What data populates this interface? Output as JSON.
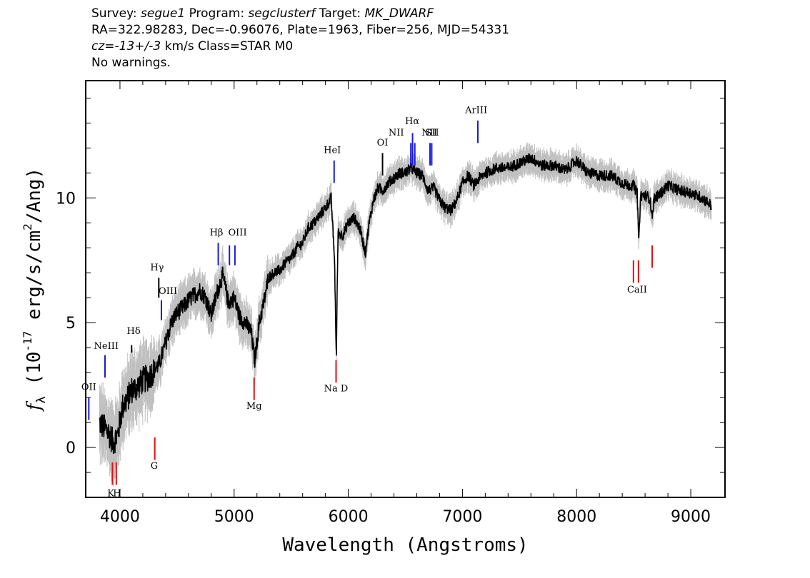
{
  "header": {
    "line1": {
      "p1": "Survey: ",
      "v1": "segue1",
      "p2": " Program: ",
      "v2": "segclusterf",
      "p3": " Target: ",
      "v3": "MK_DWARF"
    },
    "line2": "RA=322.98283, Dec=-0.96076, Plate=1963, Fiber=256, MJD=54331",
    "line3": {
      "v1": "cz=-13+/-3",
      "p1": " km/s Class=STAR M0"
    },
    "line4": "No warnings."
  },
  "chart_data": {
    "type": "line",
    "xlabel": "Wavelength (Angstroms)",
    "ylabel_main": "f",
    "ylabel_sub": "λ",
    "ylabel_rest": " (10",
    "ylabel_exp": "-17",
    "ylabel_tail": " erg/s/cm",
    "ylabel_exp2": "2",
    "ylabel_end": "/Ang)",
    "xlim": [
      3700,
      9300
    ],
    "ylim": [
      -2,
      14.7
    ],
    "x_ticks": [
      4000,
      5000,
      6000,
      7000,
      8000,
      9000
    ],
    "x_tick_labels": [
      "4000",
      "5000",
      "6000",
      "7000",
      "8000",
      "9000"
    ],
    "y_ticks": [
      0,
      5,
      10
    ],
    "y_tick_labels": [
      "0",
      "5",
      "10"
    ],
    "series": [
      {
        "color": "#000000",
        "x": [
          3820,
          3860,
          3900,
          3940,
          3980,
          4020,
          4060,
          4100,
          4150,
          4200,
          4250,
          4300,
          4350,
          4400,
          4450,
          4500,
          4550,
          4600,
          4650,
          4700,
          4750,
          4800,
          4850,
          4900,
          4950,
          5000,
          5050,
          5100,
          5150,
          5180,
          5220,
          5260,
          5300,
          5350,
          5400,
          5450,
          5500,
          5550,
          5600,
          5650,
          5700,
          5750,
          5800,
          5850,
          5880,
          5895,
          5910,
          5950,
          6000,
          6050,
          6100,
          6150,
          6180,
          6220,
          6260,
          6300,
          6350,
          6400,
          6450,
          6500,
          6550,
          6600,
          6650,
          6700,
          6750,
          6800,
          6850,
          6900,
          6950,
          7000,
          7050,
          7100,
          7150,
          7200,
          7300,
          7400,
          7500,
          7600,
          7700,
          7800,
          7900,
          8000,
          8100,
          8200,
          8300,
          8400,
          8450,
          8500,
          8530,
          8545,
          8560,
          8600,
          8640,
          8662,
          8680,
          8720,
          8800,
          8900,
          9000,
          9100,
          9180
        ],
        "y": [
          1.0,
          0.8,
          0.6,
          0.2,
          0.5,
          1.6,
          1.9,
          2.3,
          2.4,
          2.7,
          2.8,
          3.1,
          3.4,
          4.2,
          5.0,
          5.4,
          5.6,
          5.9,
          6.1,
          6.3,
          6.0,
          5.3,
          6.2,
          6.9,
          5.8,
          6.0,
          5.2,
          5.0,
          4.6,
          3.5,
          5.0,
          5.8,
          6.8,
          7.0,
          7.1,
          7.4,
          7.6,
          8.0,
          8.2,
          8.8,
          9.0,
          9.3,
          9.6,
          10.0,
          7.5,
          3.6,
          8.6,
          8.5,
          9.0,
          9.2,
          8.8,
          7.8,
          8.9,
          9.9,
          10.4,
          10.3,
          10.6,
          10.8,
          11.0,
          11.0,
          11.2,
          11.0,
          10.9,
          10.3,
          10.4,
          9.9,
          9.6,
          9.5,
          9.9,
          10.6,
          10.9,
          10.5,
          10.8,
          11.0,
          11.2,
          11.2,
          11.4,
          11.6,
          11.3,
          11.3,
          11.1,
          11.5,
          11.0,
          10.9,
          10.9,
          10.6,
          10.5,
          10.5,
          10.2,
          8.2,
          10.1,
          10.1,
          10.0,
          9.3,
          10.0,
          10.1,
          10.5,
          10.3,
          10.2,
          10.0,
          9.7
        ]
      }
    ],
    "lines": [
      {
        "label": "OII",
        "x": 3727,
        "color": "blue",
        "y0": 1.1,
        "y1": 2.0,
        "lx": 3727,
        "ly": 2.3
      },
      {
        "label": "NeIII",
        "x": 3869,
        "color": "blue",
        "y0": 2.8,
        "y1": 3.7,
        "lx": 3880,
        "ly": 3.95
      },
      {
        "label": "Hδ",
        "x": 4102,
        "color": "black",
        "y0": 3.8,
        "y1": 4.1,
        "lx": 4120,
        "ly": 4.55
      },
      {
        "label": "Hγ",
        "x": 4340,
        "color": "black",
        "y0": 6.0,
        "y1": 6.8,
        "lx": 4325,
        "ly": 7.1
      },
      {
        "label": "OIII",
        "x": 4363,
        "color": "blue",
        "y0": 5.1,
        "y1": 5.9,
        "lx": 4420,
        "ly": 6.15
      },
      {
        "label": "Hβ",
        "x": 4861,
        "color": "blue",
        "y0": 7.3,
        "y1": 8.2,
        "lx": 4845,
        "ly": 8.5
      },
      {
        "label": "OIII",
        "x": 4959,
        "color": "blue",
        "y0": 7.3,
        "y1": 8.1,
        "lx": 5030,
        "ly": 8.5
      },
      {
        "label": "OIII",
        "x": 5007,
        "color": "blue",
        "y0": 7.3,
        "y1": 8.1,
        "lx": null,
        "ly": null
      },
      {
        "label": "HeI",
        "x": 5876,
        "color": "blue",
        "y0": 10.6,
        "y1": 11.5,
        "lx": 5860,
        "ly": 11.8
      },
      {
        "label": "OI",
        "x": 6300,
        "color": "black",
        "y0": 10.9,
        "y1": 11.8,
        "lx": 6300,
        "ly": 12.1
      },
      {
        "label": "NII",
        "x": 6548,
        "color": "blue",
        "y0": 11.3,
        "y1": 12.2,
        "lx": 6420,
        "ly": 12.5
      },
      {
        "label": "Hα",
        "x": 6563,
        "color": "blue",
        "y0": 11.3,
        "y1": 12.6,
        "lx": 6560,
        "ly": 12.95
      },
      {
        "label": "NII",
        "x": 6583,
        "color": "blue",
        "y0": 11.3,
        "y1": 12.2,
        "lx": null,
        "ly": null
      },
      {
        "label": "NII",
        "x": 6716,
        "color": "blue",
        "y0": 11.3,
        "y1": 12.2,
        "lx": 6710,
        "ly": 12.5
      },
      {
        "label": "SII",
        "x": 6731,
        "color": "blue",
        "y0": 11.3,
        "y1": 12.2,
        "lx": 6735,
        "ly": 12.5
      },
      {
        "label": "ArIII",
        "x": 7135,
        "color": "blue",
        "y0": 12.2,
        "y1": 13.1,
        "lx": 7120,
        "ly": 13.4
      },
      {
        "label": "K",
        "x": 3934,
        "color": "red",
        "y0": -1.5,
        "y1": -0.6,
        "lx": 3920,
        "ly": -1.95
      },
      {
        "label": "H",
        "x": 3968,
        "color": "red",
        "y0": -1.5,
        "y1": -0.6,
        "lx": 3975,
        "ly": -1.95
      },
      {
        "label": "G",
        "x": 4305,
        "color": "red",
        "y0": -0.5,
        "y1": 0.4,
        "lx": 4300,
        "ly": -0.85
      },
      {
        "label": "Mg",
        "x": 5175,
        "color": "red",
        "y0": 1.9,
        "y1": 2.8,
        "lx": 5175,
        "ly": 1.55
      },
      {
        "label": "Na D",
        "x": 5893,
        "color": "red",
        "y0": 2.6,
        "y1": 3.5,
        "lx": 5893,
        "ly": 2.25
      },
      {
        "label": "CaII",
        "x": 8498,
        "color": "red",
        "y0": 6.6,
        "y1": 7.5,
        "lx": 8530,
        "ly": 6.2
      },
      {
        "label": "CaII",
        "x": 8542,
        "color": "red",
        "y0": 6.6,
        "y1": 7.5,
        "lx": null,
        "ly": null
      },
      {
        "label": "CaII",
        "x": 8662,
        "color": "red",
        "y0": 7.2,
        "y1": 8.1,
        "lx": null,
        "ly": null
      }
    ]
  }
}
